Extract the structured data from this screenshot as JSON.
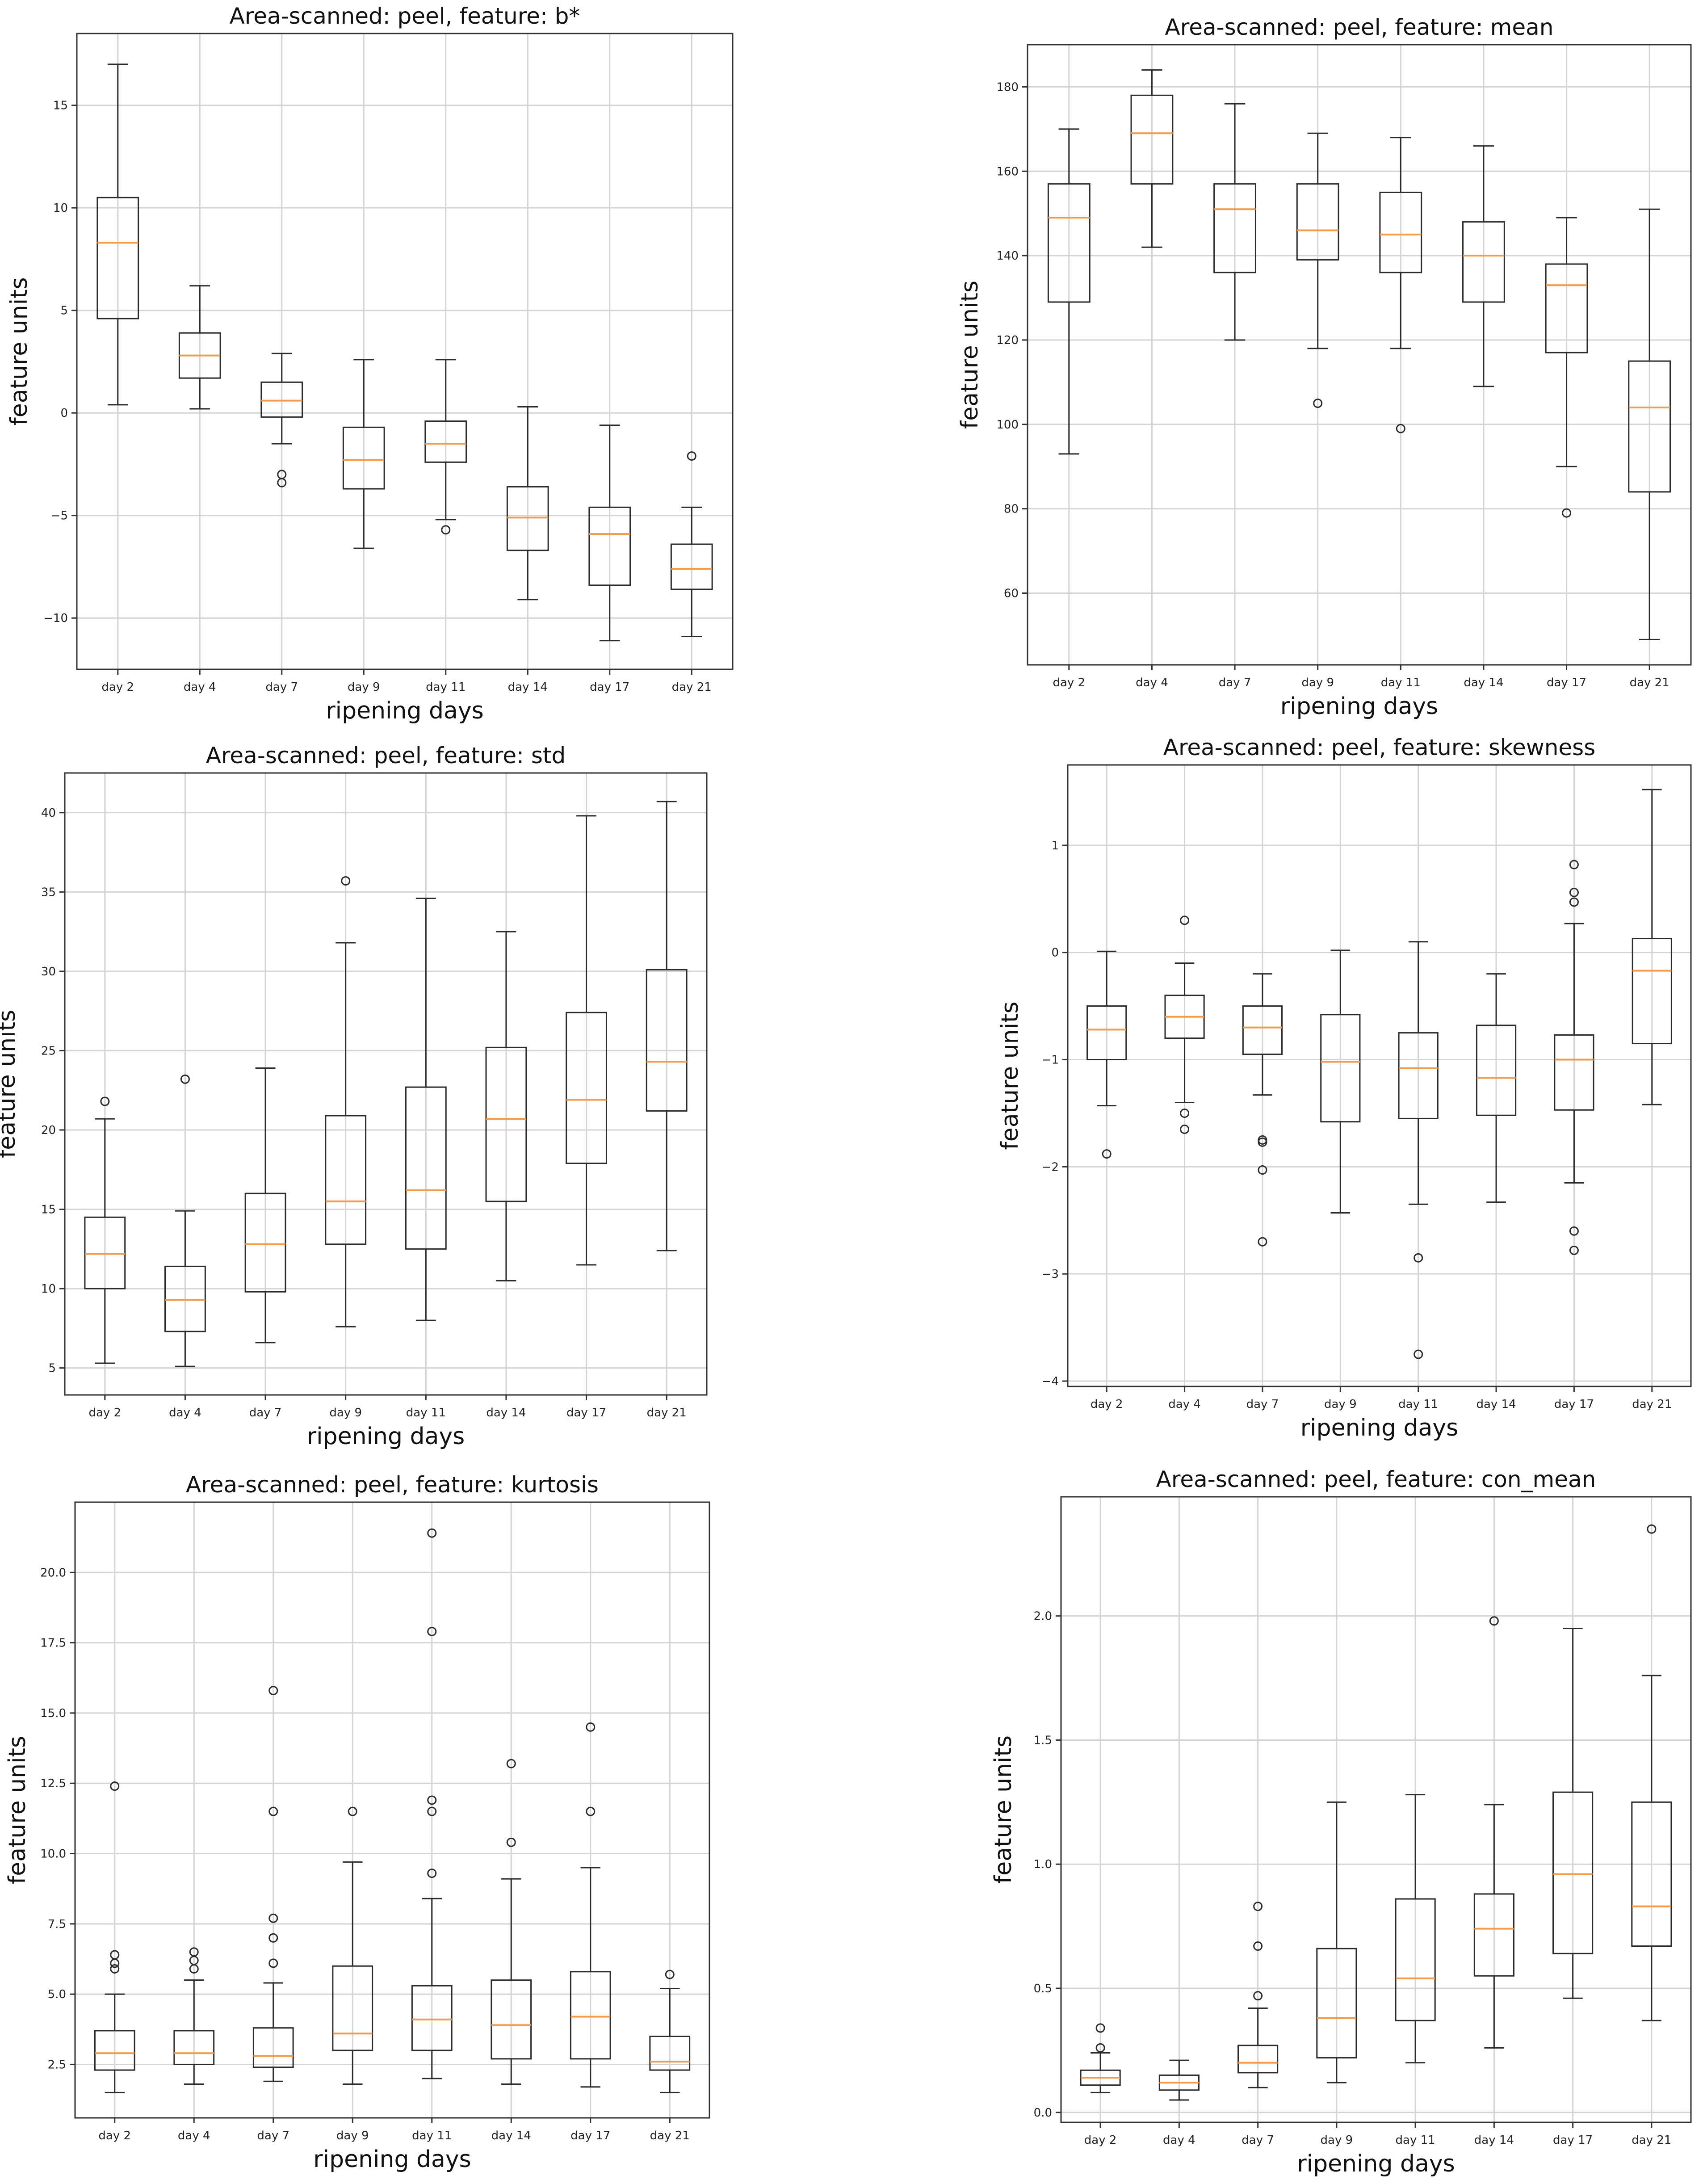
{
  "colors": {
    "grid": "#d4d4d4",
    "median": "#f59a4a",
    "box": "#2b2b2b",
    "frame": "#333333",
    "background": "#ffffff"
  },
  "chart_data": [
    {
      "type": "box",
      "title": "Area-scanned: peel, feature: b*",
      "xlabel": "ripening days",
      "ylabel": "feature units",
      "categories": [
        "day 2",
        "day 4",
        "day 7",
        "day 9",
        "day 11",
        "day 14",
        "day 17",
        "day 21"
      ],
      "ylim": [
        -12.5,
        18.5
      ],
      "yticks": [
        -10,
        -5,
        0,
        5,
        10,
        15
      ],
      "ytick_labels": [
        "−10",
        "−5",
        "0",
        "5",
        "10",
        "15"
      ],
      "grid": true,
      "boxes": [
        {
          "whislo": 0.4,
          "q1": 4.6,
          "med": 8.3,
          "q3": 10.5,
          "whishi": 17.0,
          "fliers": []
        },
        {
          "whislo": 0.2,
          "q1": 1.7,
          "med": 2.8,
          "q3": 3.9,
          "whishi": 6.2,
          "fliers": []
        },
        {
          "whislo": -1.5,
          "q1": -0.2,
          "med": 0.6,
          "q3": 1.5,
          "whishi": 2.9,
          "fliers": [
            -3.0,
            -3.4
          ]
        },
        {
          "whislo": -6.6,
          "q1": -3.7,
          "med": -2.3,
          "q3": -0.7,
          "whishi": 2.6,
          "fliers": []
        },
        {
          "whislo": -5.2,
          "q1": -2.4,
          "med": -1.5,
          "q3": -0.4,
          "whishi": 2.6,
          "fliers": [
            -5.7
          ]
        },
        {
          "whislo": -9.1,
          "q1": -6.7,
          "med": -5.1,
          "q3": -3.6,
          "whishi": 0.3,
          "fliers": []
        },
        {
          "whislo": -11.1,
          "q1": -8.4,
          "med": -5.9,
          "q3": -4.6,
          "whishi": -0.6,
          "fliers": []
        },
        {
          "whislo": -10.9,
          "q1": -8.6,
          "med": -7.6,
          "q3": -6.4,
          "whishi": -4.6,
          "fliers": [
            -2.1
          ]
        }
      ]
    },
    {
      "type": "box",
      "title": "Area-scanned: peel, feature: mean",
      "xlabel": "ripening days",
      "ylabel": "feature units",
      "categories": [
        "day 2",
        "day 4",
        "day 7",
        "day 9",
        "day 11",
        "day 14",
        "day 17",
        "day 21"
      ],
      "ylim": [
        43,
        190
      ],
      "yticks": [
        60,
        80,
        100,
        120,
        140,
        160,
        180
      ],
      "ytick_labels": [
        "60",
        "80",
        "100",
        "120",
        "140",
        "160",
        "180"
      ],
      "grid": true,
      "boxes": [
        {
          "whislo": 93,
          "q1": 129,
          "med": 149,
          "q3": 157,
          "whishi": 170,
          "fliers": []
        },
        {
          "whislo": 142,
          "q1": 157,
          "med": 169,
          "q3": 178,
          "whishi": 184,
          "fliers": []
        },
        {
          "whislo": 120,
          "q1": 136,
          "med": 151,
          "q3": 157,
          "whishi": 176,
          "fliers": []
        },
        {
          "whislo": 118,
          "q1": 139,
          "med": 146,
          "q3": 157,
          "whishi": 169,
          "fliers": [
            105
          ]
        },
        {
          "whislo": 118,
          "q1": 136,
          "med": 145,
          "q3": 155,
          "whishi": 168,
          "fliers": [
            99
          ]
        },
        {
          "whislo": 109,
          "q1": 129,
          "med": 140,
          "q3": 148,
          "whishi": 166,
          "fliers": []
        },
        {
          "whislo": 90,
          "q1": 117,
          "med": 133,
          "q3": 138,
          "whishi": 149,
          "fliers": [
            79
          ]
        },
        {
          "whislo": 49,
          "q1": 84,
          "med": 104,
          "q3": 115,
          "whishi": 151,
          "fliers": []
        }
      ]
    },
    {
      "type": "box",
      "title": "Area-scanned: peel, feature: std",
      "xlabel": "ripening days",
      "ylabel": "feature units",
      "categories": [
        "day 2",
        "day 4",
        "day 7",
        "day 9",
        "day 11",
        "day 14",
        "day 17",
        "day 21"
      ],
      "ylim": [
        3.3,
        42.5
      ],
      "yticks": [
        5,
        10,
        15,
        20,
        25,
        30,
        35,
        40
      ],
      "ytick_labels": [
        "5",
        "10",
        "15",
        "20",
        "25",
        "30",
        "35",
        "40"
      ],
      "grid": true,
      "boxes": [
        {
          "whislo": 5.3,
          "q1": 10.0,
          "med": 12.2,
          "q3": 14.5,
          "whishi": 20.7,
          "fliers": [
            21.8
          ]
        },
        {
          "whislo": 5.1,
          "q1": 7.3,
          "med": 9.3,
          "q3": 11.4,
          "whishi": 14.9,
          "fliers": [
            23.2
          ]
        },
        {
          "whislo": 6.6,
          "q1": 9.8,
          "med": 12.8,
          "q3": 16.0,
          "whishi": 23.9,
          "fliers": []
        },
        {
          "whislo": 7.6,
          "q1": 12.8,
          "med": 15.5,
          "q3": 20.9,
          "whishi": 31.8,
          "fliers": [
            35.7
          ]
        },
        {
          "whislo": 8.0,
          "q1": 12.5,
          "med": 16.2,
          "q3": 22.7,
          "whishi": 34.6,
          "fliers": []
        },
        {
          "whislo": 10.5,
          "q1": 15.5,
          "med": 20.7,
          "q3": 25.2,
          "whishi": 32.5,
          "fliers": []
        },
        {
          "whislo": 11.5,
          "q1": 17.9,
          "med": 21.9,
          "q3": 27.4,
          "whishi": 39.8,
          "fliers": []
        },
        {
          "whislo": 12.4,
          "q1": 21.2,
          "med": 24.3,
          "q3": 30.1,
          "whishi": 40.7,
          "fliers": []
        }
      ]
    },
    {
      "type": "box",
      "title": "Area-scanned: peel, feature: skewness",
      "xlabel": "ripening days",
      "ylabel": "feature units",
      "categories": [
        "day 2",
        "day 4",
        "day 7",
        "day 9",
        "day 11",
        "day 14",
        "day 17",
        "day 21"
      ],
      "ylim": [
        -4.05,
        1.75
      ],
      "yticks": [
        -4,
        -3,
        -2,
        -1,
        0,
        1
      ],
      "ytick_labels": [
        "−4",
        "−3",
        "−2",
        "−1",
        "0",
        "1"
      ],
      "grid": true,
      "boxes": [
        {
          "whislo": -1.43,
          "q1": -1.0,
          "med": -0.72,
          "q3": -0.5,
          "whishi": 0.01,
          "fliers": [
            -1.88
          ]
        },
        {
          "whislo": -1.4,
          "q1": -0.8,
          "med": -0.6,
          "q3": -0.4,
          "whishi": -0.1,
          "fliers": [
            0.3,
            -1.5,
            -1.65
          ]
        },
        {
          "whislo": -1.33,
          "q1": -0.95,
          "med": -0.7,
          "q3": -0.5,
          "whishi": -0.2,
          "fliers": [
            -1.75,
            -1.77,
            -2.03,
            -2.7
          ]
        },
        {
          "whislo": -2.43,
          "q1": -1.58,
          "med": -1.02,
          "q3": -0.58,
          "whishi": 0.02,
          "fliers": []
        },
        {
          "whislo": -2.35,
          "q1": -1.55,
          "med": -1.08,
          "q3": -0.75,
          "whishi": 0.1,
          "fliers": [
            -2.85,
            -3.75
          ]
        },
        {
          "whislo": -2.33,
          "q1": -1.52,
          "med": -1.17,
          "q3": -0.68,
          "whishi": -0.2,
          "fliers": []
        },
        {
          "whislo": -2.15,
          "q1": -1.47,
          "med": -1.0,
          "q3": -0.77,
          "whishi": 0.27,
          "fliers": [
            0.82,
            0.56,
            0.47,
            -2.6,
            -2.78
          ]
        },
        {
          "whislo": -1.42,
          "q1": -0.85,
          "med": -0.17,
          "q3": 0.13,
          "whishi": 1.52,
          "fliers": []
        }
      ]
    },
    {
      "type": "box",
      "title": "Area-scanned: peel, feature: kurtosis",
      "xlabel": "ripening days",
      "ylabel": "feature units",
      "categories": [
        "day 2",
        "day 4",
        "day 7",
        "day 9",
        "day 11",
        "day 14",
        "day 17",
        "day 21"
      ],
      "ylim": [
        0.6,
        22.5
      ],
      "yticks": [
        2.5,
        5.0,
        7.5,
        10.0,
        12.5,
        15.0,
        17.5,
        20.0
      ],
      "ytick_labels": [
        "2.5",
        "5.0",
        "7.5",
        "10.0",
        "12.5",
        "15.0",
        "17.5",
        "20.0"
      ],
      "grid": true,
      "boxes": [
        {
          "whislo": 1.5,
          "q1": 2.3,
          "med": 2.9,
          "q3": 3.7,
          "whishi": 5.0,
          "fliers": [
            5.9,
            6.1,
            6.4,
            12.4
          ]
        },
        {
          "whislo": 1.8,
          "q1": 2.5,
          "med": 2.9,
          "q3": 3.7,
          "whishi": 5.5,
          "fliers": [
            5.9,
            6.2,
            6.5
          ]
        },
        {
          "whislo": 1.9,
          "q1": 2.4,
          "med": 2.8,
          "q3": 3.8,
          "whishi": 5.4,
          "fliers": [
            6.1,
            7.0,
            7.7,
            11.5,
            15.8
          ]
        },
        {
          "whislo": 1.8,
          "q1": 3.0,
          "med": 3.6,
          "q3": 6.0,
          "whishi": 9.7,
          "fliers": [
            11.5
          ]
        },
        {
          "whislo": 2.0,
          "q1": 3.0,
          "med": 4.1,
          "q3": 5.3,
          "whishi": 8.4,
          "fliers": [
            9.3,
            11.5,
            11.9,
            17.9,
            21.4
          ]
        },
        {
          "whislo": 1.8,
          "q1": 2.7,
          "med": 3.9,
          "q3": 5.5,
          "whishi": 9.1,
          "fliers": [
            10.4,
            13.2
          ]
        },
        {
          "whislo": 1.7,
          "q1": 2.7,
          "med": 4.2,
          "q3": 5.8,
          "whishi": 9.5,
          "fliers": [
            11.5,
            14.5
          ]
        },
        {
          "whislo": 1.5,
          "q1": 2.3,
          "med": 2.6,
          "q3": 3.5,
          "whishi": 5.2,
          "fliers": [
            5.7
          ]
        }
      ]
    },
    {
      "type": "box",
      "title": "Area-scanned: peel, feature: con_mean",
      "xlabel": "ripening days",
      "ylabel": "feature units",
      "categories": [
        "day 2",
        "day 4",
        "day 7",
        "day 9",
        "day 11",
        "day 14",
        "day 17",
        "day 21"
      ],
      "ylim": [
        -0.04,
        2.48
      ],
      "yticks": [
        0.0,
        0.5,
        1.0,
        1.5,
        2.0
      ],
      "ytick_labels": [
        "0.0",
        "0.5",
        "1.0",
        "1.5",
        "2.0"
      ],
      "grid": true,
      "boxes": [
        {
          "whislo": 0.08,
          "q1": 0.11,
          "med": 0.14,
          "q3": 0.17,
          "whishi": 0.24,
          "fliers": [
            0.26,
            0.34
          ]
        },
        {
          "whislo": 0.05,
          "q1": 0.09,
          "med": 0.12,
          "q3": 0.15,
          "whishi": 0.21,
          "fliers": []
        },
        {
          "whislo": 0.1,
          "q1": 0.16,
          "med": 0.2,
          "q3": 0.27,
          "whishi": 0.42,
          "fliers": [
            0.47,
            0.67,
            0.83
          ]
        },
        {
          "whislo": 0.12,
          "q1": 0.22,
          "med": 0.38,
          "q3": 0.66,
          "whishi": 1.25,
          "fliers": []
        },
        {
          "whislo": 0.2,
          "q1": 0.37,
          "med": 0.54,
          "q3": 0.86,
          "whishi": 1.28,
          "fliers": []
        },
        {
          "whislo": 0.26,
          "q1": 0.55,
          "med": 0.74,
          "q3": 0.88,
          "whishi": 1.24,
          "fliers": [
            1.98
          ]
        },
        {
          "whislo": 0.46,
          "q1": 0.64,
          "med": 0.96,
          "q3": 1.29,
          "whishi": 1.95,
          "fliers": []
        },
        {
          "whislo": 0.37,
          "q1": 0.67,
          "med": 0.83,
          "q3": 1.25,
          "whishi": 1.76,
          "fliers": [
            2.35
          ]
        }
      ]
    }
  ]
}
